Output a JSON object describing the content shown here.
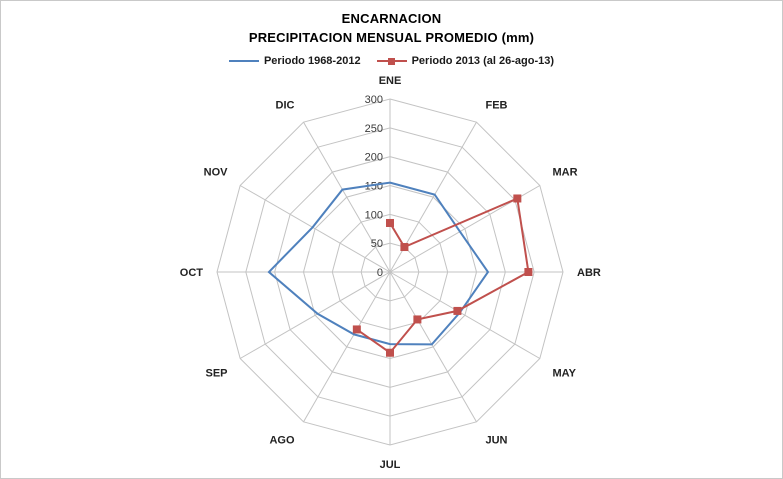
{
  "chart_data": {
    "type": "radar",
    "title": "ENCARNACION",
    "subtitle": "PRECIPITACION MENSUAL PROMEDIO (mm)",
    "categories": [
      "ENE",
      "FEB",
      "MAR",
      "ABR",
      "MAY",
      "JUN",
      "JUL",
      "AGO",
      "SEP",
      "OCT",
      "NOV",
      "DIC"
    ],
    "r_axis": {
      "min": 0,
      "max": 300,
      "step": 50,
      "ticks": [
        0,
        50,
        100,
        150,
        200,
        250,
        300
      ]
    },
    "grid_color": "#c3c3c3",
    "legend_position": "top-center",
    "series": [
      {
        "name": "Periodo 1968-2012",
        "color": "#4F81BD",
        "marker": "none",
        "closed": true,
        "values": [
          155,
          155,
          140,
          170,
          140,
          145,
          125,
          125,
          145,
          210,
          155,
          165
        ]
      },
      {
        "name": "Periodo 2013 (al 26-ago-13)",
        "color": "#C0504D",
        "marker": "square",
        "closed": false,
        "values": [
          85,
          50,
          255,
          240,
          135,
          95,
          140,
          115,
          null,
          null,
          null,
          null
        ]
      }
    ]
  }
}
